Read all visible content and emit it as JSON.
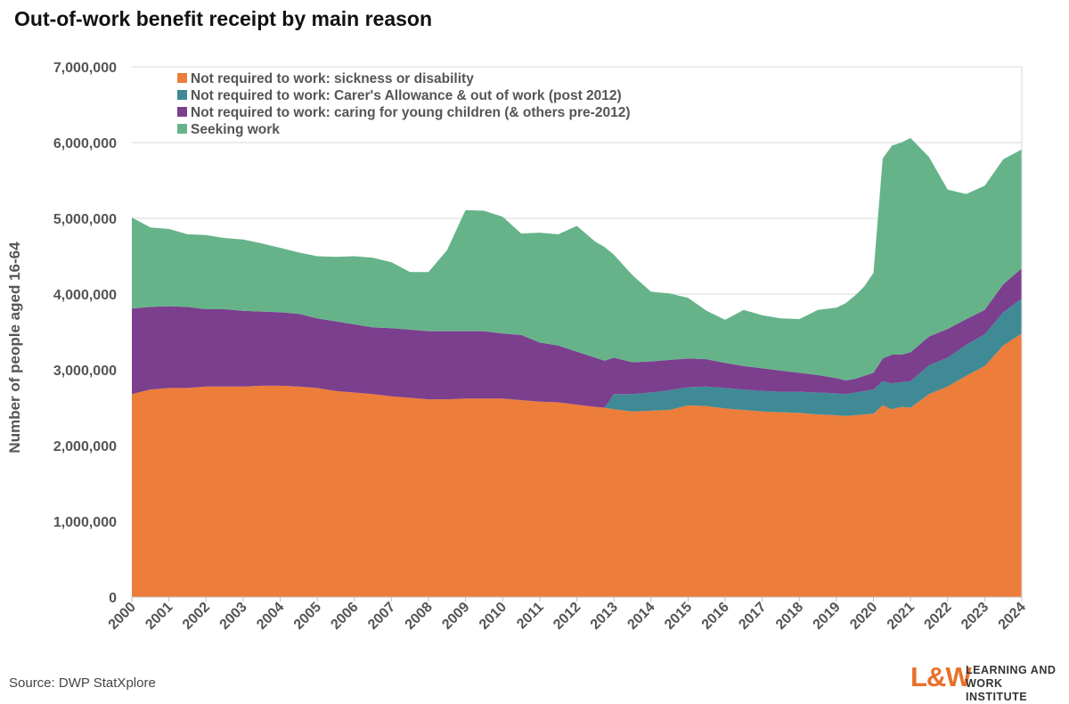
{
  "title": "Out-of-work benefit receipt by main reason",
  "source": "Source: DWP StatXplore",
  "logo": {
    "mark": "L&W",
    "line1": "LEARNING AND",
    "line2": "WORK INSTITUTE"
  },
  "colors": {
    "sickness": "#ed7d3a",
    "carers": "#3f8a95",
    "childcare": "#7b3f8e",
    "seeking": "#66b38a"
  },
  "chart_data": {
    "type": "area",
    "stacked": true,
    "title": "Out-of-work benefit receipt by main reason",
    "xlabel": "",
    "ylabel": "Number of people aged 16-64",
    "ylim": [
      0,
      7000000
    ],
    "yticks": [
      0,
      1000000,
      2000000,
      3000000,
      4000000,
      5000000,
      6000000,
      7000000
    ],
    "ytick_labels": [
      "0",
      "1,000,000",
      "2,000,000",
      "3,000,000",
      "4,000,000",
      "5,000,000",
      "6,000,000",
      "7,000,000"
    ],
    "xlim": [
      2000,
      2024
    ],
    "xtick_labels": [
      "2000",
      "2001",
      "2002",
      "2003",
      "2004",
      "2005",
      "2006",
      "2007",
      "2008",
      "2009",
      "2010",
      "2011",
      "2012",
      "2013",
      "2014",
      "2015",
      "2016",
      "2017",
      "2018",
      "2019",
      "2020",
      "2021",
      "2022",
      "2023",
      "2024"
    ],
    "legend_position": "top-left",
    "x": [
      2000,
      2000.5,
      2001,
      2001.5,
      2002,
      2002.5,
      2003,
      2003.5,
      2004,
      2004.5,
      2005,
      2005.5,
      2006,
      2006.5,
      2007,
      2007.5,
      2008,
      2008.5,
      2009,
      2009.5,
      2010,
      2010.5,
      2011,
      2011.5,
      2012,
      2012.5,
      2012.75,
      2013,
      2013.5,
      2014,
      2014.5,
      2015,
      2015.5,
      2016,
      2016.5,
      2017,
      2017.5,
      2018,
      2018.5,
      2019,
      2019.25,
      2019.5,
      2019.75,
      2020,
      2020.25,
      2020.5,
      2020.75,
      2021,
      2021.5,
      2022,
      2022.5,
      2023,
      2023.5,
      2024
    ],
    "series": [
      {
        "name": "Not required to work: sickness or disability",
        "color": "#ed7d3a",
        "values": [
          2680000,
          2740000,
          2760000,
          2760000,
          2780000,
          2780000,
          2780000,
          2790000,
          2790000,
          2780000,
          2760000,
          2720000,
          2700000,
          2680000,
          2650000,
          2630000,
          2610000,
          2610000,
          2620000,
          2620000,
          2620000,
          2600000,
          2580000,
          2570000,
          2540000,
          2510000,
          2500000,
          2480000,
          2450000,
          2460000,
          2470000,
          2530000,
          2520000,
          2490000,
          2470000,
          2450000,
          2440000,
          2430000,
          2410000,
          2400000,
          2390000,
          2400000,
          2410000,
          2420000,
          2530000,
          2480000,
          2510000,
          2500000,
          2680000,
          2780000,
          2920000,
          3050000,
          3320000,
          3480000
        ]
      },
      {
        "name": "Not required to work: Carer's Allowance & out of work (post 2012)",
        "color": "#3f8a95",
        "values": [
          0,
          0,
          0,
          0,
          0,
          0,
          0,
          0,
          0,
          0,
          0,
          0,
          0,
          0,
          0,
          0,
          0,
          0,
          0,
          0,
          0,
          0,
          0,
          0,
          0,
          0,
          0,
          200000,
          230000,
          240000,
          260000,
          240000,
          260000,
          270000,
          270000,
          270000,
          270000,
          280000,
          290000,
          290000,
          290000,
          300000,
          310000,
          320000,
          320000,
          340000,
          330000,
          350000,
          380000,
          380000,
          410000,
          420000,
          440000,
          460000
        ]
      },
      {
        "name": "Not required to work: caring for young children (& others pre-2012)",
        "color": "#7b3f8e",
        "values": [
          1130000,
          1090000,
          1080000,
          1070000,
          1020000,
          1020000,
          1000000,
          980000,
          970000,
          960000,
          920000,
          920000,
          900000,
          880000,
          900000,
          900000,
          900000,
          900000,
          890000,
          890000,
          860000,
          860000,
          780000,
          750000,
          700000,
          650000,
          620000,
          480000,
          420000,
          410000,
          400000,
          380000,
          360000,
          330000,
          310000,
          300000,
          280000,
          250000,
          230000,
          200000,
          180000,
          180000,
          200000,
          220000,
          300000,
          380000,
          360000,
          380000,
          380000,
          380000,
          340000,
          320000,
          370000,
          400000
        ]
      },
      {
        "name": "Seeking work",
        "color": "#66b38a",
        "values": [
          1200000,
          1050000,
          1020000,
          960000,
          980000,
          940000,
          940000,
          900000,
          850000,
          810000,
          820000,
          850000,
          900000,
          920000,
          870000,
          760000,
          780000,
          1070000,
          1600000,
          1590000,
          1540000,
          1340000,
          1450000,
          1470000,
          1660000,
          1530000,
          1500000,
          1360000,
          1150000,
          920000,
          880000,
          800000,
          640000,
          570000,
          740000,
          700000,
          690000,
          710000,
          860000,
          930000,
          1020000,
          1100000,
          1180000,
          1320000,
          2640000,
          2760000,
          2800000,
          2830000,
          2370000,
          1840000,
          1650000,
          1640000,
          1650000,
          1570000
        ]
      }
    ]
  }
}
